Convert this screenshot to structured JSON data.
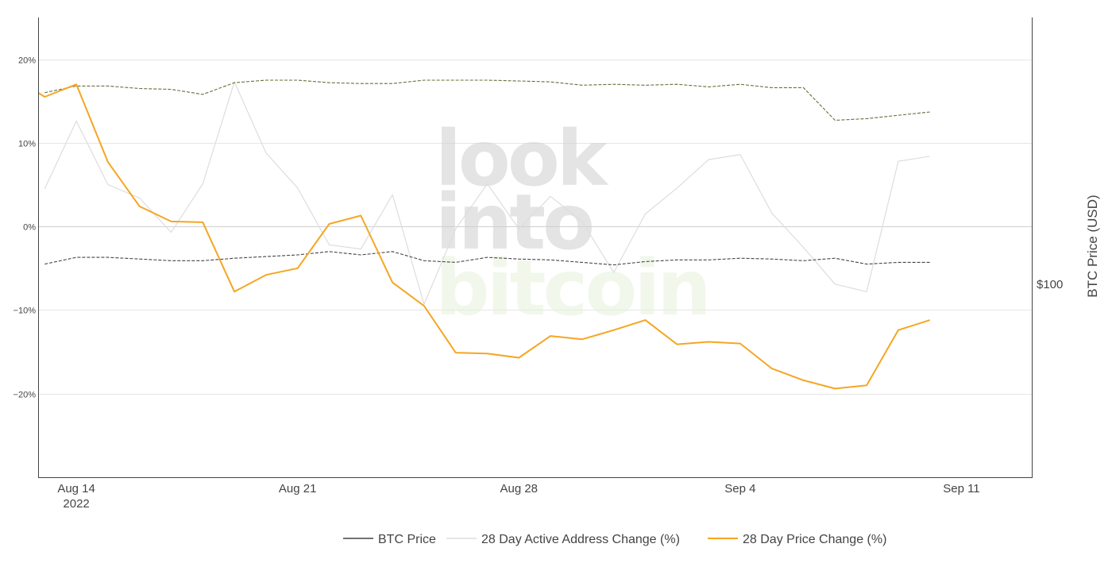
{
  "chart_data": {
    "type": "line",
    "watermark": [
      "look",
      "into",
      "bitcoin"
    ],
    "x_ticks": [
      {
        "date": "2022-08-14",
        "label": "Aug 14",
        "sublabel": "2022"
      },
      {
        "date": "2022-08-21",
        "label": "Aug 21"
      },
      {
        "date": "2022-08-28",
        "label": "Aug 28"
      },
      {
        "date": "2022-09-04",
        "label": "Sep 4"
      },
      {
        "date": "2022-09-11",
        "label": "Sep 11"
      }
    ],
    "xlim": [
      "2022-08-12T19:00",
      "2022-09-13T06:00"
    ],
    "y_left": {
      "ylim": [
        -30,
        25
      ],
      "ticks": [
        {
          "value": 20,
          "label": "20%"
        },
        {
          "value": 10,
          "label": "10%"
        },
        {
          "value": 0,
          "label": "0%"
        },
        {
          "value": -10,
          "label": "−10%"
        },
        {
          "value": -20,
          "label": "−20%"
        }
      ]
    },
    "y_right": {
      "title": "BTC Price (USD)",
      "ticks": [
        {
          "label": "$100"
        }
      ]
    },
    "series": [
      {
        "name": "BTC Price",
        "color": "#444444",
        "style": "dashed",
        "x": [
          "2022-08-13",
          "2022-08-14",
          "2022-08-15",
          "2022-08-16",
          "2022-08-17",
          "2022-08-18",
          "2022-08-19",
          "2022-08-20",
          "2022-08-21",
          "2022-08-22",
          "2022-08-23",
          "2022-08-24",
          "2022-08-25",
          "2022-08-26",
          "2022-08-27",
          "2022-08-28",
          "2022-08-29",
          "2022-08-30",
          "2022-08-31",
          "2022-09-01",
          "2022-09-02",
          "2022-09-03",
          "2022-09-04",
          "2022-09-05",
          "2022-09-06",
          "2022-09-07",
          "2022-09-08",
          "2022-09-09",
          "2022-09-10"
        ],
        "values": [
          -4.5,
          -3.7,
          -3.7,
          -3.9,
          -4.1,
          -4.1,
          -3.8,
          -3.6,
          -3.4,
          -3.0,
          -3.4,
          -3.0,
          -4.1,
          -4.3,
          -3.7,
          -3.9,
          -4.0,
          -4.3,
          -4.6,
          -4.2,
          -4.0,
          -4.0,
          -3.8,
          -3.9,
          -4.1,
          -3.8,
          -4.5,
          -4.3,
          -4.3
        ],
        "upper_band_values": [
          16.0,
          16.8,
          16.8,
          16.5,
          16.4,
          15.8,
          17.2,
          17.5,
          17.5,
          17.2,
          17.1,
          17.1,
          17.5,
          17.5,
          17.5,
          17.4,
          17.3,
          16.9,
          17.0,
          16.9,
          17.0,
          16.7,
          17.0,
          16.6,
          16.6,
          12.7,
          12.9,
          13.3,
          13.7
        ]
      },
      {
        "name": "28 Day Active Address Change (%)",
        "color": "#dddddd",
        "style": "solid",
        "x": [
          "2022-08-13",
          "2022-08-14",
          "2022-08-15",
          "2022-08-16",
          "2022-08-17",
          "2022-08-18",
          "2022-08-19",
          "2022-08-20",
          "2022-08-21",
          "2022-08-22",
          "2022-08-23",
          "2022-08-24",
          "2022-08-25",
          "2022-08-26",
          "2022-08-27",
          "2022-08-28",
          "2022-08-29",
          "2022-08-30",
          "2022-08-31",
          "2022-09-01",
          "2022-09-02",
          "2022-09-03",
          "2022-09-04",
          "2022-09-05",
          "2022-09-06",
          "2022-09-07",
          "2022-09-08",
          "2022-09-09",
          "2022-09-10"
        ],
        "values": [
          4.5,
          12.6,
          5.0,
          3.4,
          -0.7,
          5.1,
          17.3,
          8.8,
          4.6,
          -2.2,
          -2.7,
          3.8,
          -9.3,
          -0.3,
          5.1,
          -0.3,
          3.6,
          0.6,
          -5.5,
          1.5,
          4.6,
          8.0,
          8.6,
          1.6,
          -2.5,
          -6.9,
          -7.8,
          7.8,
          8.4
        ]
      },
      {
        "name": "28 Day Price Change (%)",
        "color": "#f5a623",
        "style": "solid",
        "x": [
          "2022-08-12T19:00",
          "2022-08-13",
          "2022-08-14",
          "2022-08-15",
          "2022-08-16",
          "2022-08-17",
          "2022-08-18",
          "2022-08-19",
          "2022-08-20",
          "2022-08-21",
          "2022-08-22",
          "2022-08-23",
          "2022-08-24",
          "2022-08-25",
          "2022-08-26",
          "2022-08-27",
          "2022-08-28",
          "2022-08-29",
          "2022-08-30",
          "2022-08-31",
          "2022-09-01",
          "2022-09-02",
          "2022-09-03",
          "2022-09-04",
          "2022-09-05",
          "2022-09-06",
          "2022-09-07",
          "2022-09-08",
          "2022-09-09",
          "2022-09-10"
        ],
        "values": [
          16.0,
          15.5,
          17.0,
          7.7,
          2.4,
          0.6,
          0.5,
          -7.8,
          -5.8,
          -5.0,
          0.3,
          1.3,
          -6.7,
          -9.5,
          -15.1,
          -15.2,
          -15.7,
          -13.1,
          -13.5,
          -12.4,
          -11.2,
          -14.1,
          -13.8,
          -14.0,
          -17.0,
          -18.4,
          -19.4,
          -19.0,
          -12.4,
          -11.2
        ]
      }
    ],
    "legend": {
      "placement": "bottom-center",
      "items": [
        "BTC Price",
        "28 Day Active Address Change (%)",
        "28 Day Price Change (%)"
      ]
    },
    "grid": true
  }
}
